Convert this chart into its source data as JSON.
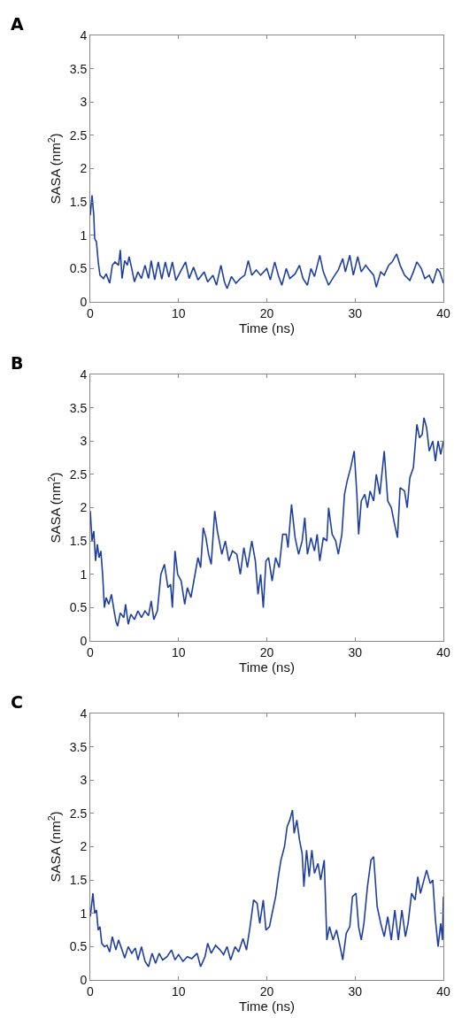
{
  "chart_data": [
    {
      "type": "line",
      "title": "A",
      "xlabel": "Time (ns)",
      "ylabel": "SASA (nm$^{2}$)",
      "xlim": [
        0,
        40
      ],
      "ylim": [
        0,
        4
      ],
      "xticks": [
        0,
        10,
        20,
        30,
        40
      ],
      "yticks": [
        0,
        0.5,
        1,
        1.5,
        2,
        2.5,
        3,
        3.5,
        4
      ],
      "grid": false,
      "x": [
        0,
        0.2,
        0.4,
        0.5,
        0.7,
        0.9,
        1.1,
        1.5,
        1.8,
        2.2,
        2.5,
        2.8,
        3.2,
        3.4,
        3.6,
        3.9,
        4.2,
        4.4,
        4.7,
        5.0,
        5.4,
        5.8,
        6.2,
        6.6,
        6.9,
        7.3,
        7.7,
        8.1,
        8.5,
        8.9,
        9.3,
        9.7,
        10.2,
        10.8,
        11.2,
        11.7,
        12.2,
        12.9,
        13.3,
        13.9,
        14.3,
        14.8,
        15.2,
        15.5,
        16.0,
        16.5,
        17.0,
        17.5,
        17.9,
        18.3,
        18.8,
        19.3,
        20.0,
        20.4,
        20.9,
        21.3,
        21.7,
        22.2,
        22.6,
        23.2,
        23.7,
        24.1,
        24.6,
        25.0,
        25.4,
        26.0,
        26.4,
        27.0,
        27.6,
        28.1,
        28.6,
        28.9,
        29.4,
        29.8,
        30.3,
        30.7,
        31.2,
        31.6,
        32.1,
        32.4,
        32.9,
        33.3,
        33.8,
        34.2,
        34.7,
        35.1,
        35.6,
        36.2,
        36.6,
        37.0,
        37.5,
        37.9,
        38.4,
        38.8,
        39.3,
        39.6,
        40
      ],
      "series": [
        {
          "color": "#1f3f9f",
          "values": [
            1.3,
            1.6,
            1.3,
            0.95,
            0.9,
            0.6,
            0.4,
            0.35,
            0.42,
            0.28,
            0.55,
            0.6,
            0.55,
            0.78,
            0.35,
            0.62,
            0.55,
            0.68,
            0.5,
            0.3,
            0.45,
            0.35,
            0.55,
            0.35,
            0.62,
            0.33,
            0.6,
            0.34,
            0.6,
            0.37,
            0.6,
            0.32,
            0.45,
            0.6,
            0.35,
            0.52,
            0.33,
            0.45,
            0.3,
            0.4,
            0.25,
            0.55,
            0.3,
            0.2,
            0.38,
            0.28,
            0.35,
            0.4,
            0.62,
            0.4,
            0.48,
            0.4,
            0.5,
            0.33,
            0.6,
            0.4,
            0.25,
            0.5,
            0.35,
            0.42,
            0.55,
            0.35,
            0.25,
            0.5,
            0.38,
            0.7,
            0.45,
            0.25,
            0.38,
            0.48,
            0.65,
            0.45,
            0.7,
            0.4,
            0.68,
            0.45,
            0.55,
            0.48,
            0.4,
            0.22,
            0.45,
            0.4,
            0.55,
            0.6,
            0.72,
            0.55,
            0.4,
            0.32,
            0.45,
            0.6,
            0.5,
            0.35,
            0.4,
            0.28,
            0.5,
            0.45,
            0.28
          ]
        }
      ]
    },
    {
      "type": "line",
      "title": "B",
      "xlabel": "Time (ns)",
      "ylabel": "SASA (nm$^{2}$)",
      "xlim": [
        0,
        40
      ],
      "ylim": [
        0,
        4
      ],
      "xticks": [
        0,
        10,
        20,
        30,
        40
      ],
      "yticks": [
        0,
        0.5,
        1,
        1.5,
        2,
        2.5,
        3,
        3.5,
        4
      ],
      "grid": false,
      "x": [
        0,
        0.2,
        0.4,
        0.6,
        0.8,
        1.0,
        1.2,
        1.4,
        1.6,
        1.8,
        2.1,
        2.4,
        2.7,
        2.9,
        3.1,
        3.4,
        3.8,
        4.0,
        4.3,
        4.6,
        5.0,
        5.4,
        5.8,
        6.2,
        6.6,
        6.9,
        7.2,
        7.6,
        8.0,
        8.4,
        8.8,
        9.1,
        9.3,
        9.6,
        9.9,
        10.3,
        10.7,
        11.0,
        11.4,
        11.8,
        12.2,
        12.5,
        12.8,
        13.1,
        13.4,
        13.7,
        14.1,
        14.4,
        14.9,
        15.3,
        15.7,
        16.1,
        16.6,
        17.0,
        17.4,
        17.8,
        18.3,
        18.7,
        19.0,
        19.3,
        19.6,
        19.9,
        20.2,
        20.6,
        21.0,
        21.4,
        21.8,
        22.2,
        22.4,
        22.8,
        23.2,
        23.6,
        24.0,
        24.3,
        24.6,
        25.0,
        25.4,
        25.7,
        26.0,
        26.4,
        26.8,
        27.0,
        27.4,
        27.8,
        28.1,
        28.5,
        28.8,
        29.1,
        29.5,
        29.9,
        30.2,
        30.4,
        30.7,
        31.1,
        31.4,
        31.7,
        32.1,
        32.4,
        32.8,
        33.3,
        33.7,
        34.1,
        34.4,
        34.8,
        35.1,
        35.6,
        35.9,
        36.2,
        36.6,
        37.0,
        37.3,
        37.6,
        37.8,
        38.1,
        38.4,
        38.8,
        39.1,
        39.4,
        39.7,
        40
      ],
      "series": [
        {
          "color": "#1f3f9f",
          "values": [
            1.95,
            1.5,
            1.65,
            1.2,
            1.45,
            1.25,
            1.35,
            1.0,
            0.5,
            0.65,
            0.55,
            0.7,
            0.45,
            0.3,
            0.22,
            0.42,
            0.35,
            0.55,
            0.25,
            0.4,
            0.32,
            0.45,
            0.35,
            0.45,
            0.38,
            0.6,
            0.32,
            0.45,
            1.0,
            1.15,
            0.8,
            0.85,
            0.5,
            1.35,
            1.0,
            0.9,
            0.55,
            0.8,
            0.65,
            0.95,
            1.25,
            1.1,
            1.7,
            1.55,
            1.3,
            1.15,
            1.95,
            1.65,
            1.3,
            1.5,
            1.2,
            1.35,
            1.3,
            1.0,
            1.4,
            1.1,
            1.5,
            1.2,
            0.7,
            1.0,
            0.5,
            1.2,
            1.25,
            0.9,
            1.25,
            1.1,
            1.6,
            1.6,
            1.4,
            2.05,
            1.55,
            1.3,
            1.5,
            1.85,
            1.3,
            1.55,
            1.35,
            1.6,
            1.2,
            1.55,
            1.5,
            2.0,
            1.6,
            1.5,
            1.3,
            1.6,
            2.2,
            2.4,
            2.6,
            2.85,
            2.2,
            1.6,
            2.1,
            2.2,
            2.0,
            2.25,
            2.1,
            2.5,
            2.2,
            2.85,
            2.1,
            2.0,
            1.8,
            1.55,
            2.3,
            2.25,
            2.0,
            2.45,
            2.6,
            3.25,
            3.05,
            3.1,
            3.35,
            3.2,
            2.85,
            3.0,
            2.7,
            3.0,
            2.8,
            3.0
          ]
        }
      ]
    },
    {
      "type": "line",
      "title": "C",
      "xlabel": "Time (ns)",
      "ylabel": "SASA (nm$^{2}$)",
      "xlim": [
        0,
        40
      ],
      "ylim": [
        0,
        4
      ],
      "xticks": [
        0,
        10,
        20,
        30,
        40
      ],
      "yticks": [
        0,
        0.5,
        1,
        1.5,
        2,
        2.5,
        3,
        3.5,
        4
      ],
      "grid": false,
      "x": [
        0,
        0.3,
        0.5,
        0.7,
        0.9,
        1.1,
        1.3,
        1.6,
        1.9,
        2.2,
        2.5,
        2.9,
        3.2,
        3.6,
        3.9,
        4.3,
        4.7,
        5.1,
        5.4,
        5.8,
        6.2,
        6.6,
        7.0,
        7.4,
        7.8,
        8.2,
        8.7,
        9.2,
        9.6,
        10.0,
        10.5,
        11.0,
        11.5,
        12.1,
        12.5,
        13.0,
        13.3,
        13.7,
        14.2,
        14.7,
        15.1,
        15.5,
        15.9,
        16.4,
        16.8,
        17.3,
        17.7,
        18.1,
        18.5,
        18.9,
        19.2,
        19.6,
        19.9,
        20.3,
        20.6,
        21.0,
        21.3,
        21.6,
        22.0,
        22.3,
        22.6,
        22.9,
        23.1,
        23.4,
        23.7,
        24.0,
        24.2,
        24.5,
        24.8,
        25.1,
        25.4,
        25.8,
        26.1,
        26.5,
        26.8,
        27.1,
        27.5,
        27.9,
        28.3,
        28.6,
        29.0,
        29.4,
        29.7,
        30.1,
        30.4,
        30.7,
        31.0,
        31.4,
        31.8,
        32.1,
        32.5,
        32.9,
        33.3,
        33.7,
        34.1,
        34.5,
        34.9,
        35.3,
        35.7,
        36.0,
        36.4,
        36.8,
        37.1,
        37.4,
        37.8,
        38.1,
        38.5,
        38.8,
        39.1,
        39.4,
        39.7,
        39.9,
        40
      ],
      "series": [
        {
          "color": "#1f3f9f",
          "values": [
            0.95,
            1.3,
            1.0,
            1.05,
            0.75,
            0.8,
            0.55,
            0.5,
            0.52,
            0.42,
            0.65,
            0.45,
            0.6,
            0.45,
            0.33,
            0.5,
            0.4,
            0.48,
            0.3,
            0.5,
            0.28,
            0.2,
            0.4,
            0.25,
            0.4,
            0.3,
            0.35,
            0.45,
            0.3,
            0.38,
            0.28,
            0.35,
            0.32,
            0.4,
            0.2,
            0.35,
            0.55,
            0.4,
            0.52,
            0.45,
            0.38,
            0.5,
            0.3,
            0.5,
            0.42,
            0.62,
            0.45,
            0.8,
            1.2,
            1.15,
            0.85,
            1.2,
            0.75,
            0.8,
            1.0,
            1.25,
            1.55,
            1.8,
            2.0,
            2.3,
            2.4,
            2.55,
            2.2,
            2.4,
            2.1,
            1.9,
            1.4,
            1.95,
            1.55,
            1.95,
            1.6,
            1.75,
            1.5,
            1.8,
            0.6,
            0.8,
            0.6,
            0.75,
            0.5,
            0.3,
            0.7,
            0.8,
            1.25,
            1.3,
            0.8,
            0.6,
            0.85,
            1.4,
            1.8,
            1.85,
            1.1,
            0.85,
            0.65,
            0.95,
            0.6,
            1.05,
            0.6,
            1.05,
            0.65,
            0.85,
            1.3,
            1.2,
            1.55,
            1.3,
            1.5,
            1.65,
            1.45,
            1.5,
            0.9,
            0.5,
            0.85,
            0.6,
            1.25
          ]
        }
      ]
    }
  ]
}
